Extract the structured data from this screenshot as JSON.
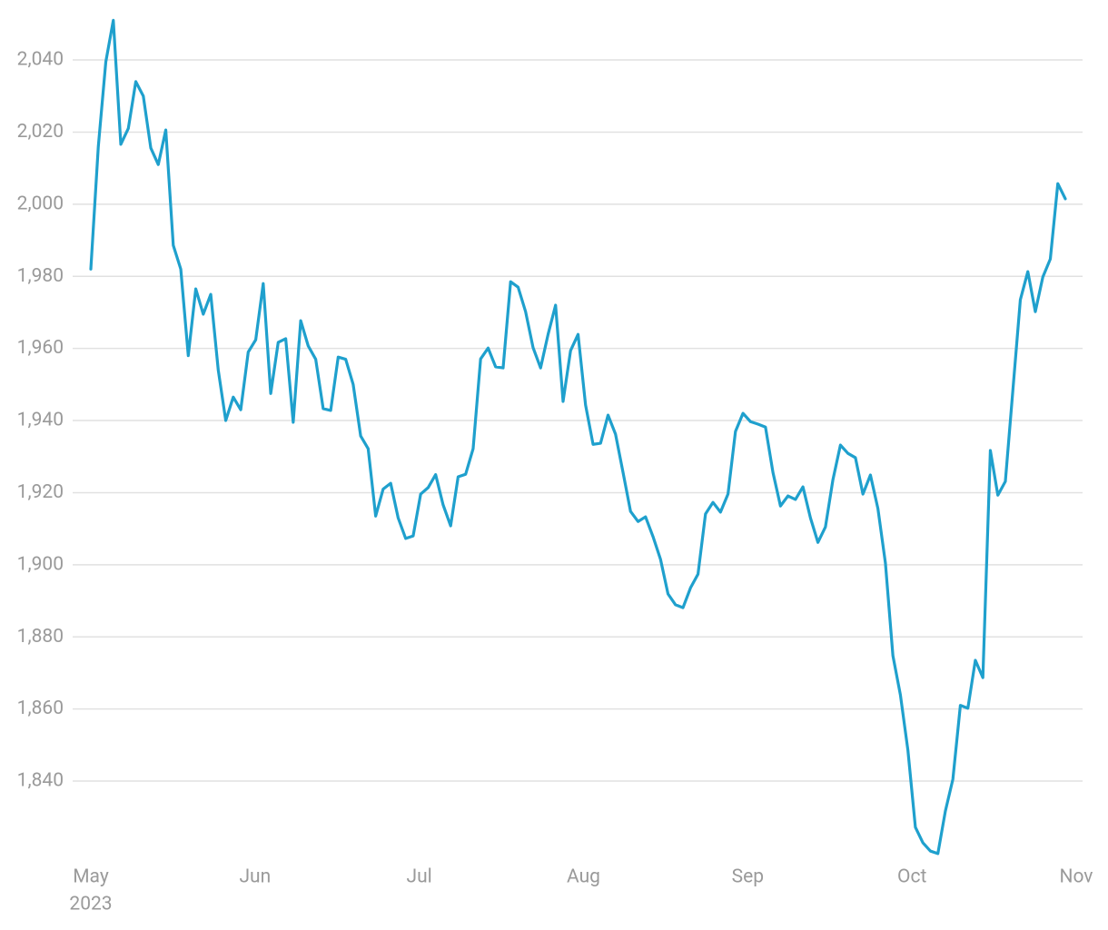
{
  "chart_data": {
    "type": "line",
    "color": "#1fa0cd",
    "grid": true,
    "ylim": [
      1815,
      2055
    ],
    "yticks": [
      {
        "value": 1840,
        "label": "1,840"
      },
      {
        "value": 1860,
        "label": "1,860"
      },
      {
        "value": 1880,
        "label": "1,880"
      },
      {
        "value": 1900,
        "label": "1,900"
      },
      {
        "value": 1920,
        "label": "1,920"
      },
      {
        "value": 1940,
        "label": "1,940"
      },
      {
        "value": 1960,
        "label": "1,960"
      },
      {
        "value": 1980,
        "label": "1,980"
      },
      {
        "value": 2000,
        "label": "2,000"
      },
      {
        "value": 2020,
        "label": "2,020"
      },
      {
        "value": 2040,
        "label": "2,040"
      }
    ],
    "x_month_labels": [
      "May",
      "Jun",
      "Jul",
      "Aug",
      "Sep",
      "Oct",
      "Nov"
    ],
    "x_year_label": "2023",
    "values": [
      1982,
      2016,
      2039.5,
      2051,
      2016.6,
      2021,
      2034,
      2030,
      2015.6,
      2011,
      2020.6,
      1988.6,
      1982,
      1958,
      1976.5,
      1969.5,
      1975,
      1954,
      1940,
      1946.5,
      1943,
      1959,
      1962.4,
      1978,
      1947.5,
      1961.7,
      1962.7,
      1939.5,
      1967.7,
      1960.7,
      1957,
      1943.3,
      1942.8,
      1957.6,
      1957,
      1950,
      1935.7,
      1932.2,
      1913.5,
      1921,
      1922.6,
      1913,
      1907.3,
      1908,
      1919.6,
      1921.4,
      1925,
      1916.6,
      1910.8,
      1924.4,
      1925.1,
      1932.2,
      1957.1,
      1960.1,
      1954.9,
      1954.6,
      1978.5,
      1977,
      1970.2,
      1960.2,
      1954.6,
      1963.9,
      1972,
      1945.3,
      1959.4,
      1963.9,
      1944.3,
      1933.4,
      1933.7,
      1941.5,
      1936.2,
      1925.6,
      1914.8,
      1912,
      1913.3,
      1907.8,
      1901.5,
      1891.9,
      1888.9,
      1888.1,
      1893.6,
      1897.4,
      1914.1,
      1917.3,
      1914.6,
      1919.6,
      1937,
      1942,
      1939.7,
      1939,
      1938.2,
      1925.6,
      1916.3,
      1919.1,
      1918.1,
      1921.6,
      1913,
      1906.2,
      1910.5,
      1923.6,
      1933.2,
      1930.9,
      1929.7,
      1919.6,
      1924.9,
      1915.6,
      1900.5,
      1874.8,
      1863.9,
      1848.6,
      1827.2,
      1822.9,
      1820.6,
      1819.9,
      1831.7,
      1840.5,
      1861,
      1860.2,
      1873.5,
      1868.7,
      1931.7,
      1919.3,
      1923.1,
      1948.3,
      1973.5,
      1981.3,
      1970.2,
      1979.8,
      1984.8,
      2005.7,
      2001.5
    ]
  }
}
